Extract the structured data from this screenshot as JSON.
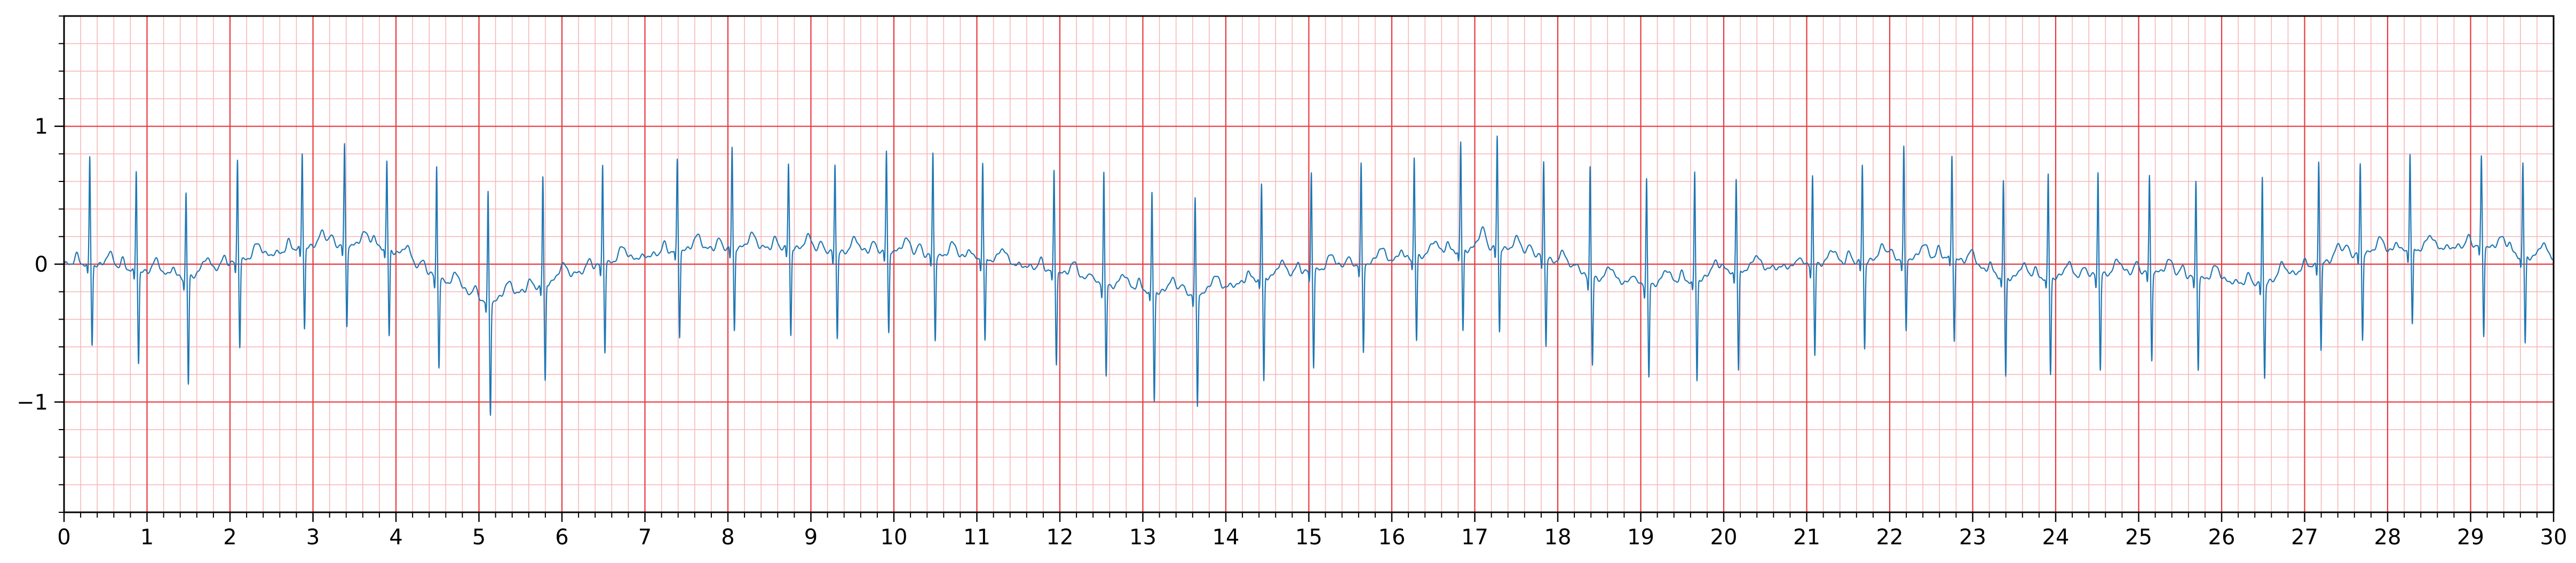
{
  "chart_data": {
    "type": "line",
    "title": "",
    "xlabel": "",
    "ylabel": "",
    "xlim": [
      0,
      30
    ],
    "ylim": [
      -1.8,
      1.8
    ],
    "x_ticks": [
      0,
      1,
      2,
      3,
      4,
      5,
      6,
      7,
      8,
      9,
      10,
      11,
      12,
      13,
      14,
      15,
      16,
      17,
      18,
      19,
      20,
      21,
      22,
      23,
      24,
      25,
      26,
      27,
      28,
      29,
      30
    ],
    "x_tick_labels": [
      "0",
      "1",
      "2",
      "3",
      "4",
      "5",
      "6",
      "7",
      "8",
      "9",
      "10",
      "11",
      "12",
      "13",
      "14",
      "15",
      "16",
      "17",
      "18",
      "19",
      "20",
      "21",
      "22",
      "23",
      "24",
      "25",
      "26",
      "27",
      "28",
      "29",
      "30"
    ],
    "y_ticks": [
      -1,
      0,
      1
    ],
    "y_tick_labels": [
      "−1",
      "0",
      "1"
    ],
    "grid": {
      "major_step_x": 1,
      "minor_step_x": 0.2,
      "major_step_y": 1,
      "minor_step_y": 0.2,
      "major_color": "#e8383d",
      "minor_color": "#f7b3b5"
    },
    "series_color": "#1f77b4",
    "beats": [
      {
        "t": 0.31,
        "r": 0.77,
        "s": -0.58,
        "base": 0.0
      },
      {
        "t": 0.87,
        "r": 0.68,
        "s": -0.67,
        "base": -0.05
      },
      {
        "t": 1.47,
        "r": 0.51,
        "s": -0.8,
        "base": -0.1
      },
      {
        "t": 2.09,
        "r": 0.76,
        "s": -0.61,
        "base": 0.02
      },
      {
        "t": 2.87,
        "r": 0.81,
        "s": -0.56,
        "base": 0.12
      },
      {
        "t": 3.38,
        "r": 0.86,
        "s": -0.56,
        "base": 0.14
      },
      {
        "t": 3.89,
        "r": 0.74,
        "s": -0.61,
        "base": 0.12
      },
      {
        "t": 4.49,
        "r": 0.71,
        "s": -0.65,
        "base": -0.1
      },
      {
        "t": 5.11,
        "r": 0.51,
        "s": -0.87,
        "base": -0.28
      },
      {
        "t": 5.77,
        "r": 0.63,
        "s": -0.74,
        "base": -0.15
      },
      {
        "t": 6.49,
        "r": 0.72,
        "s": -0.63,
        "base": 0.0
      },
      {
        "t": 7.39,
        "r": 0.75,
        "s": -0.6,
        "base": 0.1
      },
      {
        "t": 8.05,
        "r": 0.84,
        "s": -0.58,
        "base": 0.12
      },
      {
        "t": 8.73,
        "r": 0.73,
        "s": -0.61,
        "base": 0.12
      },
      {
        "t": 9.29,
        "r": 0.73,
        "s": -0.6,
        "base": 0.08
      },
      {
        "t": 9.91,
        "r": 0.81,
        "s": -0.58,
        "base": 0.1
      },
      {
        "t": 10.47,
        "r": 0.8,
        "s": -0.59,
        "base": 0.06
      },
      {
        "t": 11.07,
        "r": 0.74,
        "s": -0.6,
        "base": 0.04
      },
      {
        "t": 11.93,
        "r": 0.67,
        "s": -0.67,
        "base": -0.05
      },
      {
        "t": 12.53,
        "r": 0.67,
        "s": -0.7,
        "base": -0.15
      },
      {
        "t": 13.11,
        "r": 0.51,
        "s": -0.83,
        "base": -0.2
      },
      {
        "t": 13.63,
        "r": 0.47,
        "s": -0.87,
        "base": -0.22
      },
      {
        "t": 14.43,
        "r": 0.58,
        "s": -0.78,
        "base": -0.1
      },
      {
        "t": 15.03,
        "r": 0.67,
        "s": -0.7,
        "base": -0.05
      },
      {
        "t": 15.63,
        "r": 0.72,
        "s": -0.65,
        "base": 0.0
      },
      {
        "t": 16.27,
        "r": 0.77,
        "s": -0.6,
        "base": 0.05
      },
      {
        "t": 16.83,
        "r": 0.88,
        "s": -0.57,
        "base": 0.1
      },
      {
        "t": 17.27,
        "r": 0.93,
        "s": -0.58,
        "base": 0.12
      },
      {
        "t": 17.83,
        "r": 0.75,
        "s": -0.62,
        "base": 0.05
      },
      {
        "t": 18.39,
        "r": 0.71,
        "s": -0.65,
        "base": -0.1
      },
      {
        "t": 19.07,
        "r": 0.62,
        "s": -0.71,
        "base": -0.15
      },
      {
        "t": 19.65,
        "r": 0.66,
        "s": -0.75,
        "base": -0.12
      },
      {
        "t": 20.15,
        "r": 0.62,
        "s": -0.75,
        "base": -0.05
      },
      {
        "t": 21.07,
        "r": 0.64,
        "s": -0.67,
        "base": 0.0
      },
      {
        "t": 21.67,
        "r": 0.72,
        "s": -0.63,
        "base": 0.02
      },
      {
        "t": 22.17,
        "r": 0.84,
        "s": -0.52,
        "base": 0.04
      },
      {
        "t": 22.75,
        "r": 0.79,
        "s": -0.58,
        "base": 0.05
      },
      {
        "t": 23.37,
        "r": 0.6,
        "s": -0.74,
        "base": -0.1
      },
      {
        "t": 23.91,
        "r": 0.64,
        "s": -0.72,
        "base": -0.1
      },
      {
        "t": 24.51,
        "r": 0.67,
        "s": -0.7,
        "base": -0.08
      },
      {
        "t": 25.13,
        "r": 0.63,
        "s": -0.65,
        "base": -0.05
      },
      {
        "t": 25.69,
        "r": 0.6,
        "s": -0.67,
        "base": -0.1
      },
      {
        "t": 26.49,
        "r": 0.64,
        "s": -0.71,
        "base": -0.15
      },
      {
        "t": 27.17,
        "r": 0.76,
        "s": -0.63,
        "base": 0.0
      },
      {
        "t": 27.67,
        "r": 0.72,
        "s": -0.61,
        "base": 0.08
      },
      {
        "t": 28.27,
        "r": 0.81,
        "s": -0.53,
        "base": 0.1
      },
      {
        "t": 29.13,
        "r": 0.77,
        "s": -0.62,
        "base": 0.14
      },
      {
        "t": 29.63,
        "r": 0.73,
        "s": -0.62,
        "base": 0.05
      }
    ]
  }
}
